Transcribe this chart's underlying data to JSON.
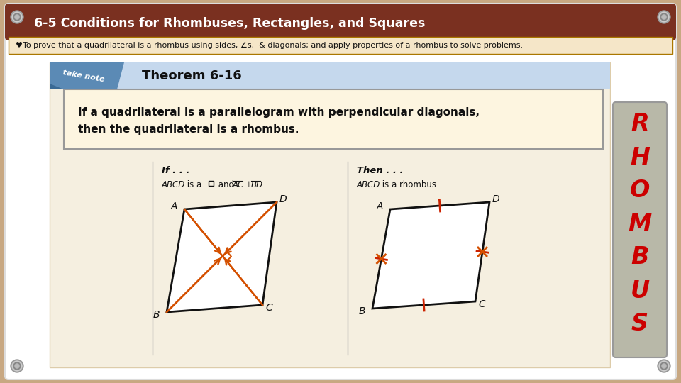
{
  "bg_color": "#c8a882",
  "slide_bg": "#ffffff",
  "header_color": "#7a3020",
  "header_text": "6-5 Conditions for Rhombuses, Rectangles, and Squares",
  "header_text_color": "#ffffff",
  "objective_text": "♥To prove that a quadrilateral is a rhombus using sides, ∠s,  & diagonals; and apply properties of a rhombus to solve problems.",
  "objective_bg": "#f5e6c8",
  "theorem_title": "Theorem 6-16",
  "theorem_line1": "If a quadrilateral is a parallelogram with perpendicular diagonals,",
  "theorem_line2": "then the quadrilateral is a rhombus.",
  "theorem_header_bg": "#c5d8ed",
  "theorem_body_bg": "#fdf5e0",
  "rhombus_letters": [
    "R",
    "H",
    "O",
    "M",
    "B",
    "U",
    "S"
  ],
  "rhombus_color": "#cc0000",
  "rhombus_bg": "#b8b8a8",
  "screw_color": "#888888",
  "orange": "#d45000",
  "red_tick": "#cc2200"
}
